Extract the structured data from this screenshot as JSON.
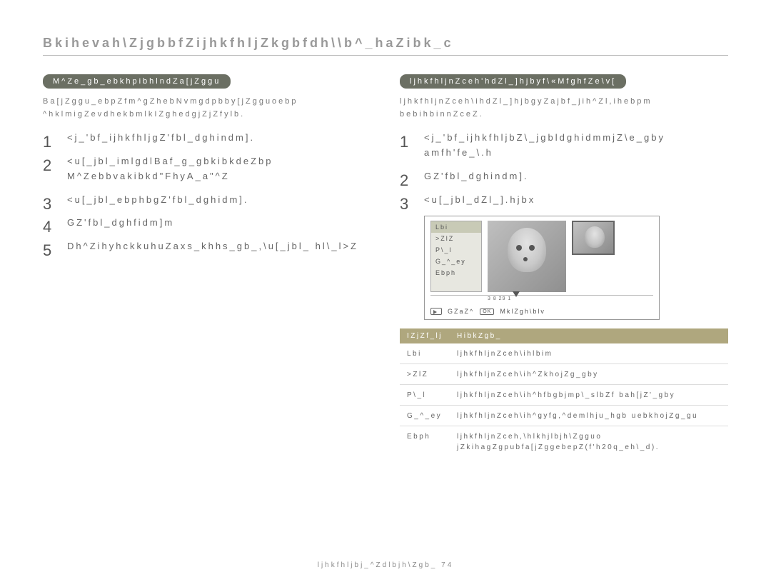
{
  "page_title": "Bkihevah\\ZjgbbfZijhkfhljZkgbfdh\\\\b^_haZibk_c",
  "footer": "ljhkfhljbj_^Zdlbjh\\Zgb_  74",
  "left": {
    "heading": "M^Ze_gb_ebkhpibhlndZa[jZggu",
    "intro": "Ba[jZggu_ebpZfm^gZhebNvmgdpbby[jZgguoebp ^hklmigZevdhekbmlkIZghedgjZjZfylb.",
    "steps": [
      "<j_'bf_ijhkfhljgZ'fbl_dghindm].",
      "<u[_jbl_imlgdlBaf_g_gbkibkdeZbp M^Zebbvakibkd\"FhyA_a\"^Z",
      "<u[_jbl_ebphbgZ'fbl_dghidm].",
      "GZ'fbl_dghfidm]m",
      "Dh^ZihyhckkuhuZaxs_khhs_gb_,\\u[_jbl_ hl\\_l>Z"
    ]
  },
  "right": {
    "heading": "ljhkfhljnZceh'hdZl_]hjbyf\\«MfghfZe\\v[",
    "intro": "ljhkfhljnZceh\\ihdZl_]hjbgyZajbf_jih^Zl,ihebpm bebihbinnZceZ.",
    "steps": [
      "<j_'bf_ijhkfhljbZ\\_jgbldghidmmjZ\\e_gby amfh'fe_\\.h",
      "GZ'fbl_dghindm].",
      "<u[_jbl_dZl_].hjbx"
    ],
    "screenshot": {
      "menu": [
        "Lbi",
        ">ZlZ",
        "P\\_l",
        "G_^_ey",
        "Ebph"
      ],
      "timeline_marks": "3  8     29     1",
      "back_label": "GZaZ^",
      "ok_label": "OK",
      "set_label": "MklZgh\\blv"
    },
    "table": {
      "head_param": "IZjZf_lj",
      "head_desc": "HibkZgb_",
      "rows": [
        {
          "p": "Lbi",
          "d": "ljhkfhljnZceh\\ihlbim"
        },
        {
          "p": ">ZlZ",
          "d": "ljhkfhljnZceh\\ih^ZkhojZg_gby"
        },
        {
          "p": "P\\_l",
          "d": "ljhkfhljnZceh\\ih^hfbgbjmp\\_slbZf bah[jZ'_gby"
        },
        {
          "p": "G_^_ey",
          "d": "ljhkfhljnZceh\\ih^gyfg,^demlhju_hgb uebkhojZg_gu"
        },
        {
          "p": "Ebph",
          "d": "ljhkfhljnZceh,\\hlkhjlbjh\\Zgguo jZkihagZgpubfa[jZggebepZ(f'h20q_eh\\_d)."
        }
      ]
    }
  }
}
